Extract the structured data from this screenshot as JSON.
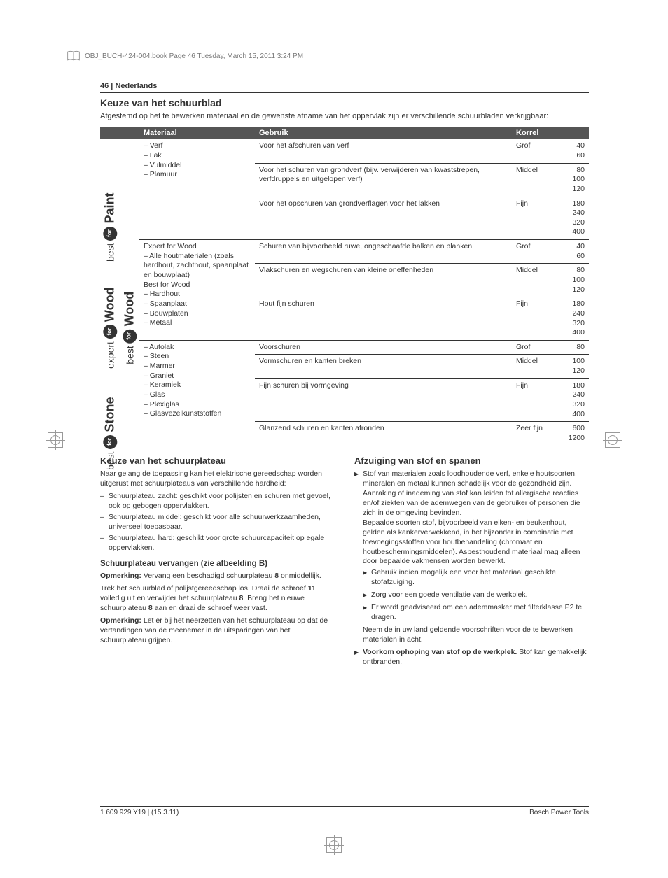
{
  "header_meta": "OBJ_BUCH-424-004.book  Page 46  Tuesday, March 15, 2011  3:24 PM",
  "page_head": {
    "num": "46",
    "sep": " | ",
    "lang": "Nederlands"
  },
  "title": "Keuze van het schuurblad",
  "intro": "Afgestemd op het te bewerken materiaal en de gewenste afname van het oppervlak zijn er verschillende schuurbladen verkrijgbaar:",
  "th": {
    "mat": "Materiaal",
    "use": "Gebruik",
    "grit": "Korrel"
  },
  "groups": [
    {
      "vlabels": [
        {
          "pre": "best",
          "main": "Paint"
        }
      ],
      "material": "– Verf\n– Lak\n– Vulmiddel\n– Plamuur",
      "rows": [
        {
          "use": "Voor het afschuren van verf",
          "g": "Grof",
          "n": "40\n60"
        },
        {
          "use": "Voor het schuren van grondverf (bijv. verwijderen van kwaststrepen, verfdruppels en uitgelopen verf)",
          "g": "Middel",
          "n": "80\n100\n120"
        },
        {
          "use": "Voor het opschuren van grondverflagen voor het lakken",
          "g": "Fijn",
          "n": "180\n240\n320\n400"
        }
      ]
    },
    {
      "vlabels": [
        {
          "pre": "expert",
          "main": "Wood"
        },
        {
          "pre": "best",
          "main": "Wood"
        }
      ],
      "material": "Expert for Wood\n– Alle houtmaterialen (zoals hardhout, zachthout, spaanplaat en bouwplaat)\nBest for Wood\n– Hardhout\n– Spaanplaat\n– Bouwplaten\n– Metaal",
      "rows": [
        {
          "use": "Schuren van bijvoorbeeld ruwe, ongeschaafde balken en planken",
          "g": "Grof",
          "n": "40\n60"
        },
        {
          "use": "Vlakschuren en wegschuren van kleine oneffenheden",
          "g": "Middel",
          "n": "80\n100\n120"
        },
        {
          "use": "Hout fijn schuren",
          "g": "Fijn",
          "n": "180\n240\n320\n400"
        }
      ]
    },
    {
      "vlabels": [
        {
          "pre": "best",
          "main": "Stone"
        }
      ],
      "material": "– Autolak\n– Steen\n– Marmer\n– Graniet\n– Keramiek\n– Glas\n– Plexiglas\n– Glasvezelkunststoffen",
      "rows": [
        {
          "use": "Voorschuren",
          "g": "Grof",
          "n": "80"
        },
        {
          "use": "Vormschuren en kanten breken",
          "g": "Middel",
          "n": "100\n120"
        },
        {
          "use": "Fijn schuren bij vormgeving",
          "g": "Fijn",
          "n": "180\n240\n320\n400"
        },
        {
          "use": "Glanzend schuren en kanten afronden",
          "g": "Zeer fijn",
          "n": "600\n1200"
        }
      ]
    }
  ],
  "left": {
    "h3": "Keuze van het schuurplateau",
    "p1": "Naar gelang de toepassing kan het elektrische gereedschap worden uitgerust met schuurplateaus van verschillende hardheid:",
    "li1": "Schuurplateau zacht: geschikt voor polijsten en schuren met gevoel, ook op gebogen oppervlakken.",
    "li2": "Schuurplateau middel: geschikt voor alle schuurwerkzaamheden, universeel toepasbaar.",
    "li3": "Schuurplateau hard: geschikt voor grote schuurcapaciteit op egale oppervlakken.",
    "h4": "Schuurplateau vervangen (zie afbeelding B)",
    "p2a": "Opmerking:",
    "p2b": " Vervang een beschadigd schuurplateau ",
    "p2c": "8",
    "p2d": " onmiddellijk.",
    "p3a": "Trek het schuurblad of polijstgereedschap los. Draai de schroef ",
    "p3b": "11",
    "p3c": " volledig uit en verwijder het schuurplateau ",
    "p3d": "8",
    "p3e": ". Breng het nieuwe schuurplateau ",
    "p3f": "8",
    "p3g": " aan en draai de schroef weer vast.",
    "p4a": "Opmerking:",
    "p4b": " Let er bij het neerzetten van het schuurplateau op dat de vertandingen van de meenemer in de uitsparingen van het schuurplateau grijpen."
  },
  "right": {
    "h3": "Afzuiging van stof en spanen",
    "b1": "Stof van materialen zoals loodhoudende verf, enkele houtsoorten, mineralen en metaal kunnen schadelijk voor de gezondheid zijn. Aanraking of inademing van stof kan leiden tot allergische reacties en/of ziekten van de ademwegen van de gebruiker of personen die zich in de omgeving bevinden.\nBepaalde soorten stof, bijvoorbeeld van eiken- en beukenhout, gelden als kankerverwekkend, in het bijzonder in combinatie met toevoegingsstoffen voor houtbehandeling (chromaat en houtbeschermingsmiddelen). Asbesthoudend materiaal mag alleen door bepaalde vakmensen worden bewerkt.",
    "s1": "Gebruik indien mogelijk een voor het materiaal geschikte stofafzuiging.",
    "s2": "Zorg voor een goede ventilatie van de werkplek.",
    "s3": "Er wordt geadviseerd om een ademmasker met filterklasse P2 te dragen.",
    "b1t": "Neem de in uw land geldende voorschriften voor de te bewerken materialen in acht.",
    "b2a": "Voorkom ophoping van stof op de werkplek.",
    "b2b": " Stof kan gemakkelijk ontbranden."
  },
  "footer": {
    "left": "1 609 929 Y19 | (15.3.11)",
    "right": "Bosch Power Tools"
  }
}
